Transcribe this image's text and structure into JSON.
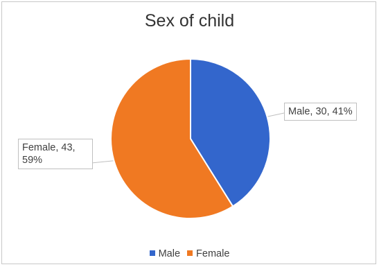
{
  "chart_data": {
    "type": "pie",
    "title": "Sex of child",
    "categories": [
      "Male",
      "Female"
    ],
    "values": [
      30,
      43
    ],
    "percentages": [
      41,
      59
    ],
    "data_labels": [
      "Male, 30, 41%",
      "Female, 43, 59%"
    ],
    "colors": [
      "#3366cc",
      "#f07922"
    ],
    "legend": {
      "position": "bottom",
      "entries": [
        "Male",
        "Female"
      ]
    }
  }
}
